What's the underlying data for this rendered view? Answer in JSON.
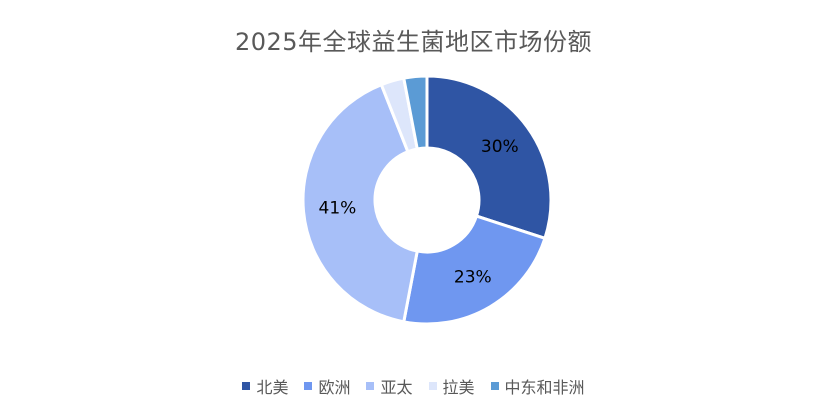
{
  "chart_data": {
    "type": "pie",
    "variant": "doughnut",
    "title": "2025年全球益生菌地区市场份额",
    "categories": [
      "北美",
      "欧洲",
      "亚太",
      "拉美",
      "中东和非洲"
    ],
    "values": [
      30,
      23,
      41,
      3,
      3
    ],
    "labels": [
      "30%",
      "23%",
      "41%",
      "",
      ""
    ],
    "colors": [
      "#2F55A4",
      "#6F97F0",
      "#A7BFF8",
      "#DDE6FB",
      "#5B9BD5"
    ],
    "legend_position": "bottom"
  }
}
